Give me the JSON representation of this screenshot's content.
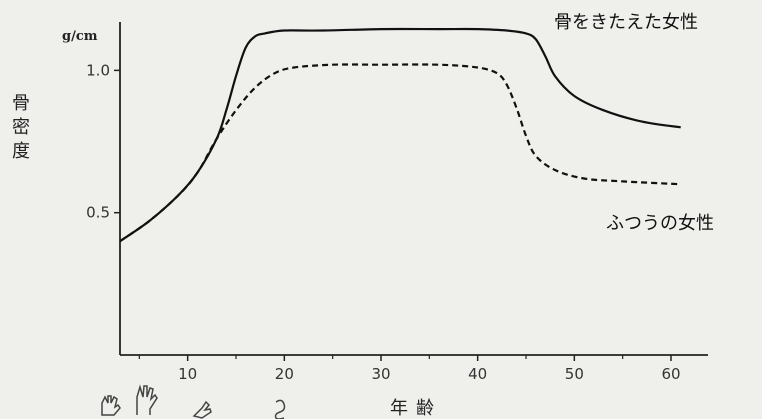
{
  "chart_data": {
    "type": "line",
    "ylabel": "骨密度",
    "yunit": "g/cm",
    "xlabel": "年齢",
    "xticks": [
      10,
      20,
      30,
      40,
      50,
      60
    ],
    "yticks": [
      0.5,
      1.0
    ],
    "xlim": [
      3,
      63
    ],
    "ylim": [
      0,
      1.17
    ],
    "grid": false,
    "series": [
      {
        "name": "骨をきたえた女性",
        "style": "solid",
        "x": [
          3,
          6,
          9,
          11,
          13,
          14,
          15,
          16,
          17,
          18,
          20,
          24,
          30,
          36,
          40,
          43,
          45,
          46,
          47,
          48,
          50,
          53,
          57,
          61
        ],
        "y": [
          0.4,
          0.47,
          0.56,
          0.64,
          0.76,
          0.86,
          0.98,
          1.08,
          1.12,
          1.13,
          1.14,
          1.14,
          1.145,
          1.145,
          1.145,
          1.14,
          1.13,
          1.11,
          1.05,
          0.98,
          0.91,
          0.86,
          0.82,
          0.8
        ]
      },
      {
        "name": "ふつうの女性",
        "style": "dashed",
        "x": [
          3,
          6,
          9,
          11,
          13,
          15,
          17,
          19,
          21,
          25,
          30,
          36,
          40,
          42,
          43,
          44,
          45,
          46,
          48,
          51,
          55,
          61
        ],
        "y": [
          0.4,
          0.47,
          0.56,
          0.64,
          0.76,
          0.86,
          0.94,
          0.99,
          1.01,
          1.02,
          1.02,
          1.02,
          1.01,
          0.99,
          0.95,
          0.87,
          0.77,
          0.7,
          0.65,
          0.62,
          0.61,
          0.6
        ]
      }
    ]
  },
  "icons": [
    "hand-icon",
    "hand-icon",
    "hand-icon",
    "hand-icon"
  ]
}
